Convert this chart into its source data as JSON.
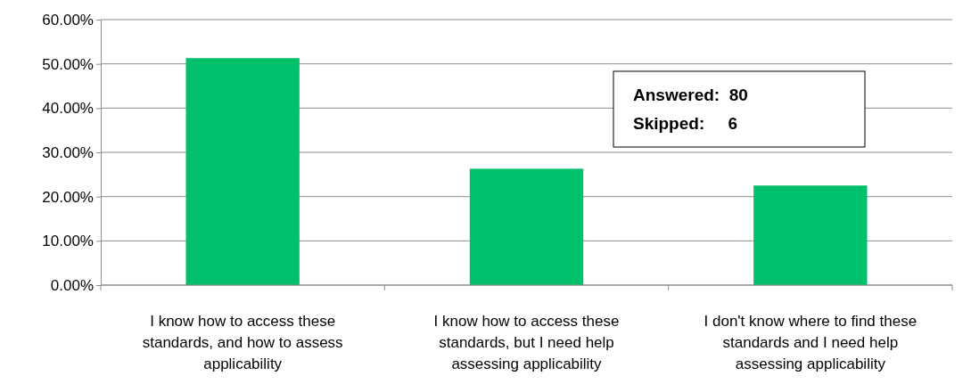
{
  "chart_data": {
    "type": "bar",
    "categories": [
      "I know how to access these standards, and how to assess applicability",
      "I know how to access these standards, but I need help assessing applicability",
      "I don't know where to find these standards and I need help assessing applicability"
    ],
    "values": [
      51.3,
      26.3,
      22.5
    ],
    "color": "#00c06b",
    "ylim": [
      0,
      60
    ],
    "yticks": [
      {
        "value": 0,
        "label": "0.00%"
      },
      {
        "value": 10,
        "label": "10.00%"
      },
      {
        "value": 20,
        "label": "20.00%"
      },
      {
        "value": 30,
        "label": "30.00%"
      },
      {
        "value": 40,
        "label": "40.00%"
      },
      {
        "value": 50,
        "label": "50.00%"
      },
      {
        "value": 60,
        "label": "60.00%"
      }
    ],
    "grid": "y",
    "annotations": [
      "Answered:  80",
      "Skipped:     6"
    ]
  }
}
